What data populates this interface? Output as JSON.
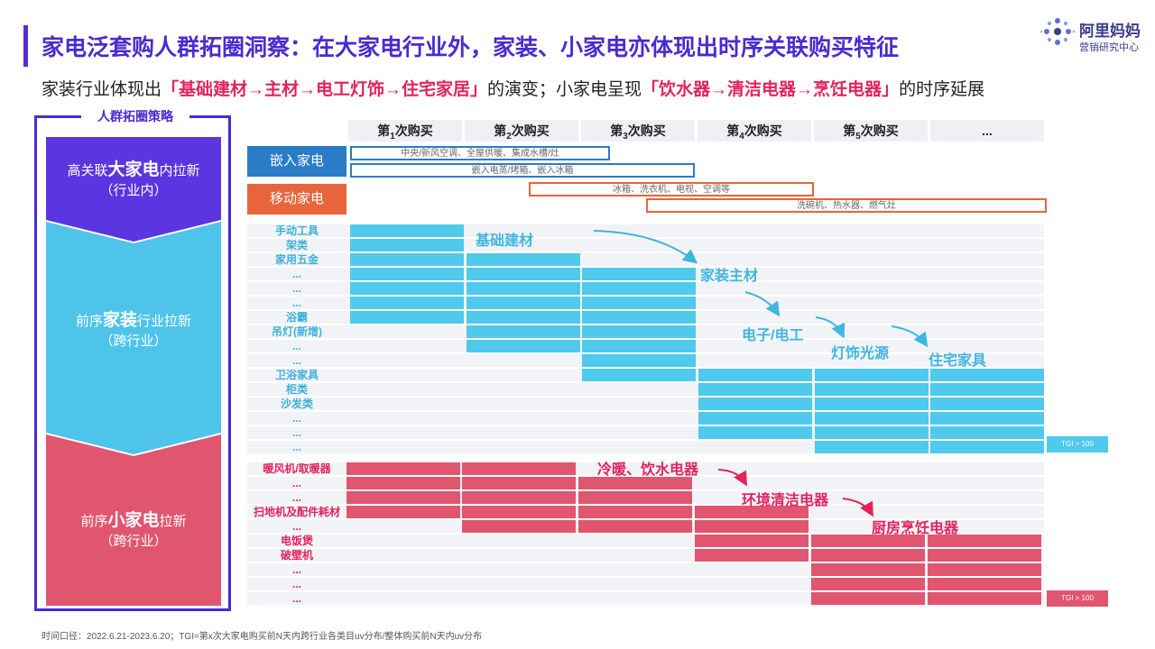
{
  "title": "家电泛套购人群拓圈洞察：在大家电行业外，家装、小家电亦体现出时序关联购买特征",
  "subtitle": {
    "p1": "家装行业体现出",
    "h1": "「基础建材→主材→电工灯饰→住宅家居」",
    "p2": "的演变；小家电呈现",
    "h2": "「饮水器→清洁电器→烹饪电器」",
    "p3": "的时序延展"
  },
  "logo": {
    "name": "阿里妈妈",
    "sub": "营销研究中心"
  },
  "strategy": {
    "title": "人群拓圈策略",
    "blocks": [
      {
        "pre": "高关联",
        "bold": "大家电",
        "post": "内拉新",
        "sub": "（行业内）"
      },
      {
        "pre": "前序",
        "bold": "家装",
        "post": "行业拉新",
        "sub": "（跨行业）"
      },
      {
        "pre": "前序",
        "bold": "小家电",
        "post": "拉新",
        "sub": "（跨行业）"
      }
    ]
  },
  "columns": [
    {
      "pre": "第",
      "num": "1",
      "post": "次购买"
    },
    {
      "pre": "第",
      "num": "2",
      "post": "次购买"
    },
    {
      "pre": "第",
      "num": "3",
      "post": "次购买"
    },
    {
      "pre": "第",
      "num": "4",
      "post": "次购买"
    },
    {
      "pre": "第",
      "num": "5",
      "post": "次购买"
    },
    {
      "pre": "...",
      "num": "",
      "post": ""
    }
  ],
  "appliances": {
    "embedded": {
      "label": "嵌入家电",
      "bar1": "中央/新风空调、全屋供暖、集成水槽/灶",
      "bar2": "嵌入电蒸/烤箱、嵌入冰箱"
    },
    "mobile": {
      "label": "移动家电",
      "bar1": "冰箱、洗衣机、电视、空调等",
      "bar2": "洗碗机、热水器、燃气灶"
    }
  },
  "home": {
    "row_labels": [
      "手动工具",
      "架类",
      "家用五金",
      "...",
      "...",
      "...",
      "浴霸",
      "吊灯(新增)",
      "...",
      "...",
      "卫浴家具",
      "柜类",
      "沙发类",
      "...",
      "...",
      "..."
    ],
    "stages": [
      "基础建材",
      "家装主材",
      "电子/电工",
      "灯饰光源",
      "住宅家具"
    ],
    "tgi": "TGI > 100"
  },
  "small": {
    "row_labels": [
      "暖风机/取暖器",
      "...",
      "...",
      "扫地机及配件耗材",
      "...",
      "电饭煲",
      "破壁机",
      "...",
      "...",
      "..."
    ],
    "stages": [
      "冷暖、饮水电器",
      "环境清洁电器",
      "厨房烹饪电器"
    ],
    "tgi": "TGI > 100"
  },
  "colors": {
    "purple": "#4a2bd0",
    "blue": "#4fc9ec",
    "red": "#e0566e",
    "orange": "#e8643a",
    "navy": "#2a7cc7"
  },
  "footnote": "时间口径：2022.6.21-2023.6.20；TGI=第x次大家电购买前N天内跨行业各类目uv分布/整体购买前N天内uv分布"
}
